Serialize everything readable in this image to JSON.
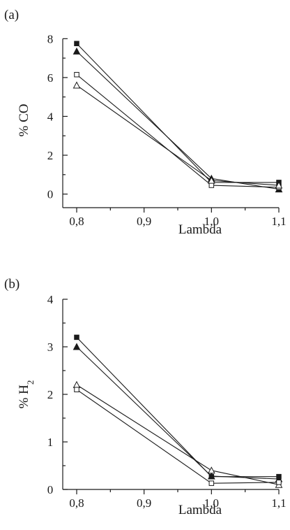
{
  "chart_data": [
    {
      "type": "line",
      "panel_label": "(a)",
      "xlabel": "Lambda",
      "ylabel": "% CO",
      "ylabel_sub": "",
      "x": [
        0.8,
        1.0,
        1.1
      ],
      "xlim": [
        0.8,
        1.1
      ],
      "ylim": [
        -0.7,
        8.3
      ],
      "x_ticks": [
        0.8,
        0.9,
        1.0,
        1.1
      ],
      "x_tick_labels": [
        "0,8",
        "0,9",
        "1,0",
        "1,1"
      ],
      "y_ticks": [
        0,
        2,
        4,
        6,
        8
      ],
      "y_tick_labels": [
        "0",
        "2",
        "4",
        "6",
        "8"
      ],
      "grid": false,
      "series": [
        {
          "marker": "filled-square",
          "values": [
            7.75,
            0.6,
            0.6
          ]
        },
        {
          "marker": "filled-triangle",
          "values": [
            7.35,
            0.8,
            0.25
          ]
        },
        {
          "marker": "open-square",
          "values": [
            6.15,
            0.45,
            0.35
          ]
        },
        {
          "marker": "open-triangle",
          "values": [
            5.6,
            0.7,
            0.45
          ]
        }
      ]
    },
    {
      "type": "line",
      "panel_label": "(b)",
      "xlabel": "Lambda",
      "ylabel": "% H",
      "ylabel_sub": "2",
      "x": [
        0.8,
        1.0,
        1.1
      ],
      "xlim": [
        0.8,
        1.1
      ],
      "ylim": [
        0,
        4
      ],
      "x_ticks": [
        0.8,
        0.9,
        1.0,
        1.1
      ],
      "x_tick_labels": [
        "0,8",
        "0,9",
        "1,0",
        "1,1"
      ],
      "y_ticks": [
        0,
        1,
        2,
        3,
        4
      ],
      "y_tick_labels": [
        "0",
        "1",
        "2",
        "3",
        "4"
      ],
      "grid": false,
      "series": [
        {
          "marker": "filled-square",
          "values": [
            3.2,
            0.27,
            0.27
          ]
        },
        {
          "marker": "filled-triangle",
          "values": [
            3.0,
            0.28,
            0.22
          ]
        },
        {
          "marker": "open-triangle",
          "values": [
            2.2,
            0.4,
            0.1
          ]
        },
        {
          "marker": "open-square",
          "values": [
            2.1,
            0.13,
            0.15
          ]
        }
      ]
    }
  ]
}
